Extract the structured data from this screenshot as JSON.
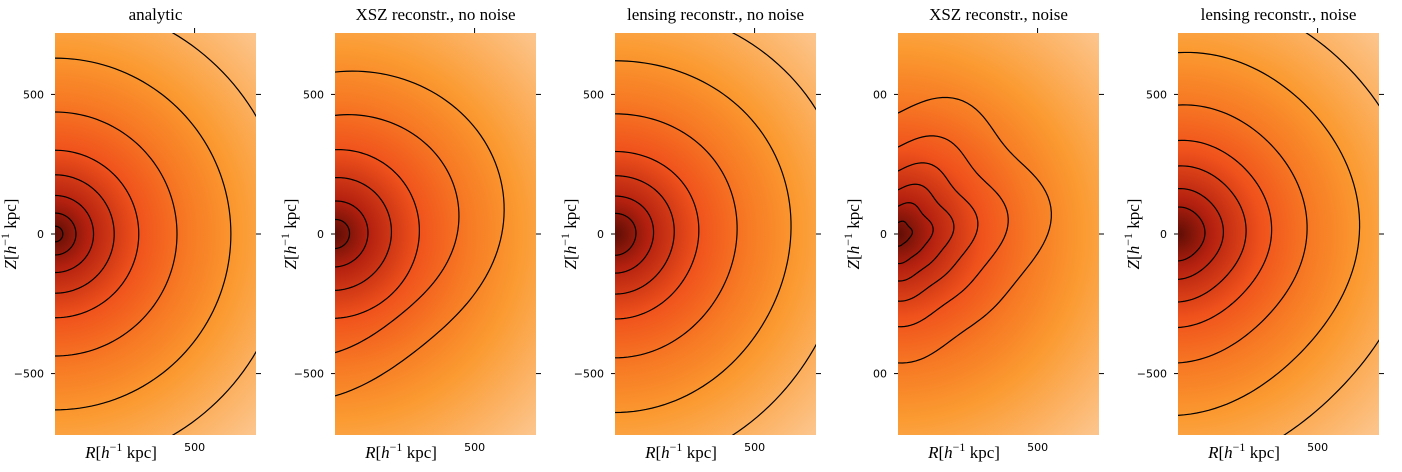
{
  "chart_data": [
    {
      "type": "heatmap",
      "title": "analytic",
      "xlabel": "R[h−1 kpc]",
      "ylabel": "Z[h−1 kpc]",
      "xlim": [
        0,
        720
      ],
      "ylim": [
        -720,
        720
      ],
      "x_ticks": [
        "500"
      ],
      "y_ticks": [
        "500",
        "0",
        "−500"
      ],
      "colormap": [
        "#5e0d05",
        "#b3200f",
        "#f0521c",
        "#f77a24",
        "#fb9a30",
        "#fcc48a"
      ],
      "contour_radii": [
        28,
        75,
        138,
        212,
        300,
        437,
        630,
        835
      ]
    },
    {
      "type": "heatmap",
      "title": "XSZ reconstr., no noise",
      "xlabel": "R[h−1 kpc]",
      "ylabel": "Z[h−1 kpc]",
      "xlim": [
        0,
        720
      ],
      "ylim": [
        -720,
        720
      ],
      "x_ticks": [
        "500"
      ],
      "y_ticks": [
        "500",
        "0",
        "−500"
      ],
      "colormap": [
        "#5e0d05",
        "#b3200f",
        "#f0521c",
        "#f77a24",
        "#fb9a30",
        "#fcc48a"
      ],
      "contour_radii": [
        52,
        118,
        202,
        302,
        425,
        580
      ]
    },
    {
      "type": "heatmap",
      "title": "lensing reconstr., no noise",
      "xlabel": "R[h−1 kpc]",
      "ylabel": "Z[h−1 kpc]",
      "xlim": [
        0,
        720
      ],
      "ylim": [
        -720,
        720
      ],
      "x_ticks": [
        "500"
      ],
      "y_ticks": [
        "500",
        "0",
        "−500"
      ],
      "colormap": [
        "#5e0d05",
        "#b3200f",
        "#f0521c",
        "#f77a24",
        "#fb9a30",
        "#fcc48a"
      ],
      "contour_radii": [
        75,
        138,
        212,
        300,
        437,
        630,
        835
      ]
    },
    {
      "type": "heatmap",
      "title": "XSZ reconstr., noise",
      "xlabel": "R[h−1 kpc]",
      "ylabel": "Z[h−1 kpc]",
      "xlim": [
        0,
        720
      ],
      "ylim": [
        -720,
        720
      ],
      "x_ticks": [
        "500"
      ],
      "y_ticks": [
        "00",
        "0",
        "00"
      ],
      "colormap": [
        "#5e0d05",
        "#b3200f",
        "#f0521c",
        "#f77a24",
        "#fb9a30",
        "#fcc48a"
      ],
      "contour_radii": [
        45,
        110,
        175,
        250,
        345,
        480
      ]
    },
    {
      "type": "heatmap",
      "title": "lensing reconstr., noise",
      "xlabel": "R[h−1 kpc]",
      "ylabel": "Z[h−1 kpc]",
      "xlim": [
        0,
        720
      ],
      "ylim": [
        -720,
        720
      ],
      "x_ticks": [
        "500"
      ],
      "y_ticks": [
        "500",
        "0",
        "−500"
      ],
      "colormap": [
        "#5e0d05",
        "#b3200f",
        "#f0521c",
        "#f77a24",
        "#fb9a30",
        "#fcc48a"
      ],
      "contour_radii": [
        95,
        160,
        240,
        330,
        455,
        640,
        840
      ]
    }
  ]
}
